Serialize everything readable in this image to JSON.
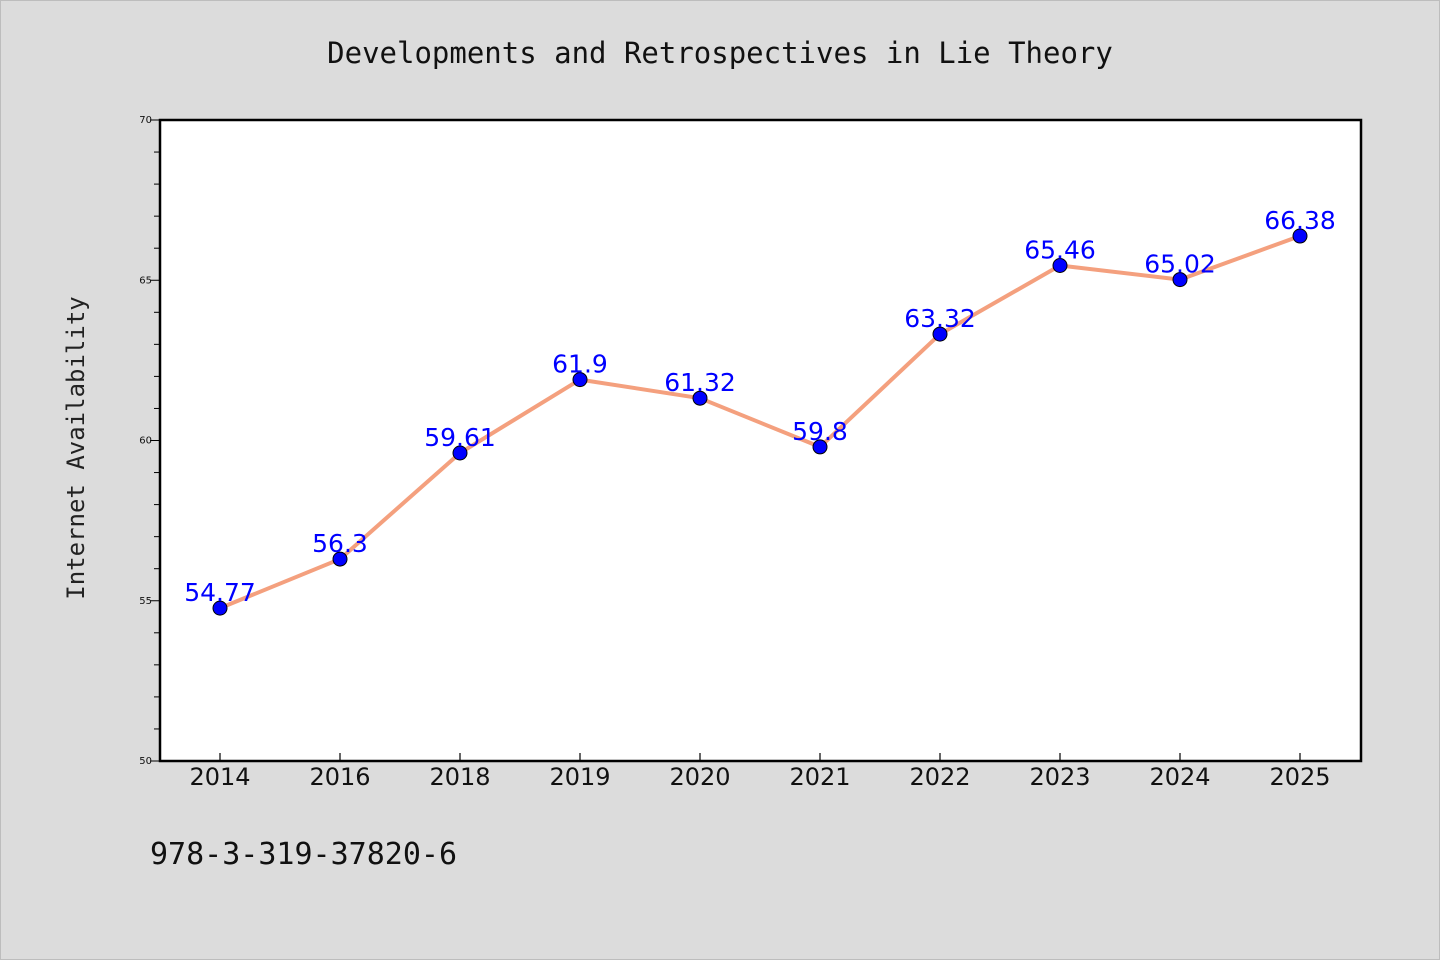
{
  "chart_data": {
    "type": "line",
    "title": "Developments and Retrospectives in Lie Theory",
    "xlabel": "",
    "ylabel": "Internet Availability",
    "categories": [
      "2014",
      "2016",
      "2018",
      "2019",
      "2020",
      "2021",
      "2022",
      "2023",
      "2024",
      "2025"
    ],
    "series": [
      {
        "values": [
          54.77,
          56.3,
          59.61,
          61.9,
          61.32,
          59.8,
          63.32,
          65.46,
          65.02,
          66.38
        ],
        "labels": [
          "54.77",
          "56.3",
          "59.61",
          "61.9",
          "61.32",
          "59.8",
          "63.32",
          "65.46",
          "65.02",
          "66.38"
        ]
      }
    ],
    "ylim": [
      50,
      70
    ],
    "yticks": [
      "50",
      "55",
      "60",
      "65",
      "70"
    ],
    "grid": false,
    "line_color": "#f4a07e",
    "marker_color": "#0000ff",
    "label_color": "#0000ff"
  },
  "footer": {
    "text": "978-3-319-37820-6"
  }
}
